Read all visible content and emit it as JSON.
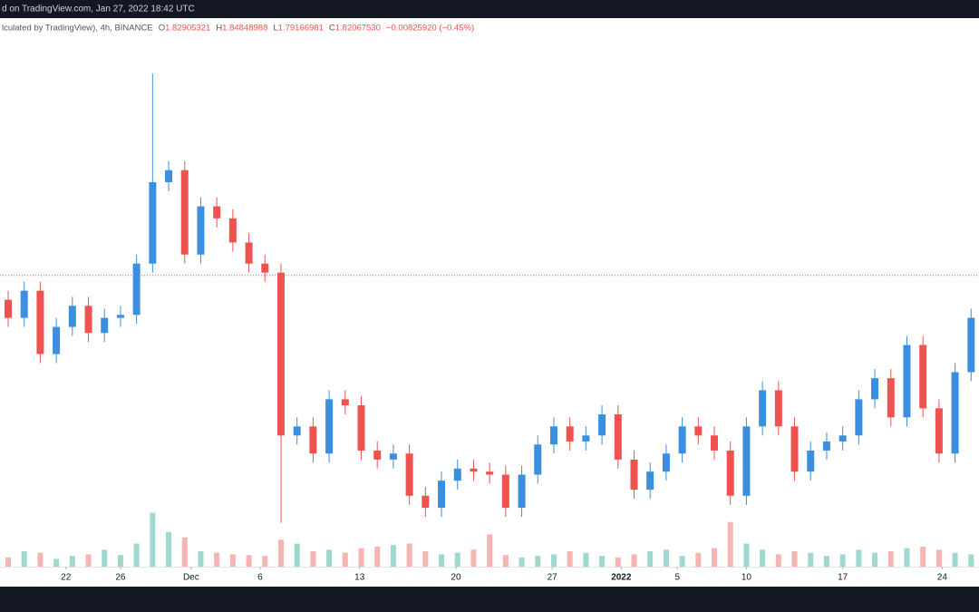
{
  "chart_data": {
    "type": "candlestick",
    "source_line": "d on TradingView.com, Jan 27, 2022 18:42 UTC",
    "symbol_info": "lculated by TradingView), 4h, BINANCE",
    "legend": {
      "open_label": "O",
      "open": "1.82905321",
      "high_label": "H",
      "high": "1.84848988",
      "low_label": "L",
      "low": "1.79166981",
      "close_label": "C",
      "close": "1.82067530",
      "change": "−0.00825920 (−0.45%)"
    },
    "up_color": "#3b8fe0",
    "down_color": "#ef5350",
    "up_volume_color": "#9fd8cf",
    "down_volume_color": "#f5b5b3",
    "ylim": [
      0.93,
      2.62
    ],
    "volume_lim": [
      0,
      100
    ],
    "xticks": [
      {
        "value": 3.6,
        "label": "22"
      },
      {
        "value": 7.0,
        "label": "26"
      },
      {
        "value": 11.4,
        "label": "Dec"
      },
      {
        "value": 15.7,
        "label": "6"
      },
      {
        "value": 21.9,
        "label": "13"
      },
      {
        "value": 27.9,
        "label": "20"
      },
      {
        "value": 33.9,
        "label": "27"
      },
      {
        "value": 38.2,
        "label": "2022"
      },
      {
        "value": 41.7,
        "label": "5"
      },
      {
        "value": 46.0,
        "label": "10"
      },
      {
        "value": 52.0,
        "label": "17"
      },
      {
        "value": 58.2,
        "label": "24"
      }
    ],
    "open": [
      1.74,
      1.68,
      1.77,
      1.56,
      1.65,
      1.72,
      1.63,
      1.68,
      1.69,
      1.86,
      2.13,
      2.17,
      1.89,
      2.05,
      2.01,
      1.93,
      1.86,
      1.83,
      1.29,
      1.32,
      1.23,
      1.41,
      1.39,
      1.24,
      1.21,
      1.23,
      1.09,
      1.05,
      1.14,
      1.18,
      1.17,
      1.16,
      1.05,
      1.16,
      1.26,
      1.32,
      1.27,
      1.29,
      1.36,
      1.21,
      1.11,
      1.17,
      1.23,
      1.32,
      1.29,
      1.24,
      1.09,
      1.32,
      1.44,
      1.32,
      1.17,
      1.24,
      1.27,
      1.29,
      1.41,
      1.48,
      1.35,
      1.59,
      1.38,
      1.23,
      1.5
    ],
    "high": [
      1.77,
      1.8,
      1.8,
      1.68,
      1.75,
      1.75,
      1.71,
      1.72,
      1.89,
      2.49,
      2.2,
      2.2,
      2.08,
      2.08,
      2.04,
      1.96,
      1.89,
      1.86,
      1.35,
      1.35,
      1.44,
      1.44,
      1.42,
      1.27,
      1.26,
      1.26,
      1.12,
      1.17,
      1.21,
      1.21,
      1.2,
      1.19,
      1.19,
      1.29,
      1.35,
      1.35,
      1.32,
      1.39,
      1.39,
      1.24,
      1.2,
      1.26,
      1.35,
      1.35,
      1.32,
      1.27,
      1.35,
      1.47,
      1.47,
      1.35,
      1.27,
      1.3,
      1.32,
      1.44,
      1.51,
      1.51,
      1.62,
      1.62,
      1.41,
      1.53,
      1.71
    ],
    "low": [
      1.65,
      1.65,
      1.53,
      1.53,
      1.62,
      1.6,
      1.6,
      1.65,
      1.66,
      1.83,
      2.1,
      1.86,
      1.86,
      1.98,
      1.9,
      1.83,
      1.8,
      1.0,
      1.26,
      1.2,
      1.2,
      1.36,
      1.21,
      1.18,
      1.18,
      1.06,
      1.02,
      1.02,
      1.11,
      1.14,
      1.13,
      1.02,
      1.02,
      1.13,
      1.23,
      1.24,
      1.24,
      1.26,
      1.18,
      1.08,
      1.08,
      1.14,
      1.2,
      1.26,
      1.21,
      1.06,
      1.06,
      1.29,
      1.29,
      1.14,
      1.14,
      1.21,
      1.24,
      1.26,
      1.38,
      1.32,
      1.32,
      1.35,
      1.2,
      1.2,
      1.47
    ],
    "close": [
      1.68,
      1.77,
      1.56,
      1.65,
      1.72,
      1.63,
      1.68,
      1.69,
      1.86,
      2.13,
      2.17,
      1.89,
      2.05,
      2.01,
      1.93,
      1.86,
      1.83,
      1.29,
      1.32,
      1.23,
      1.41,
      1.39,
      1.24,
      1.21,
      1.23,
      1.09,
      1.05,
      1.14,
      1.18,
      1.17,
      1.16,
      1.05,
      1.16,
      1.26,
      1.32,
      1.27,
      1.29,
      1.36,
      1.21,
      1.11,
      1.17,
      1.23,
      1.32,
      1.29,
      1.24,
      1.09,
      1.32,
      1.44,
      1.32,
      1.17,
      1.24,
      1.27,
      1.29,
      1.41,
      1.48,
      1.35,
      1.59,
      1.38,
      1.23,
      1.5,
      1.68
    ],
    "volume": [
      12,
      20,
      18,
      10,
      14,
      16,
      22,
      15,
      30,
      70,
      45,
      38,
      20,
      18,
      16,
      15,
      14,
      35,
      30,
      20,
      22,
      18,
      24,
      26,
      28,
      30,
      20,
      16,
      18,
      22,
      42,
      15,
      12,
      14,
      16,
      20,
      18,
      14,
      12,
      16,
      20,
      22,
      14,
      18,
      24,
      58,
      30,
      22,
      16,
      20,
      18,
      14,
      16,
      22,
      18,
      20,
      24,
      26,
      22,
      18,
      16
    ]
  }
}
